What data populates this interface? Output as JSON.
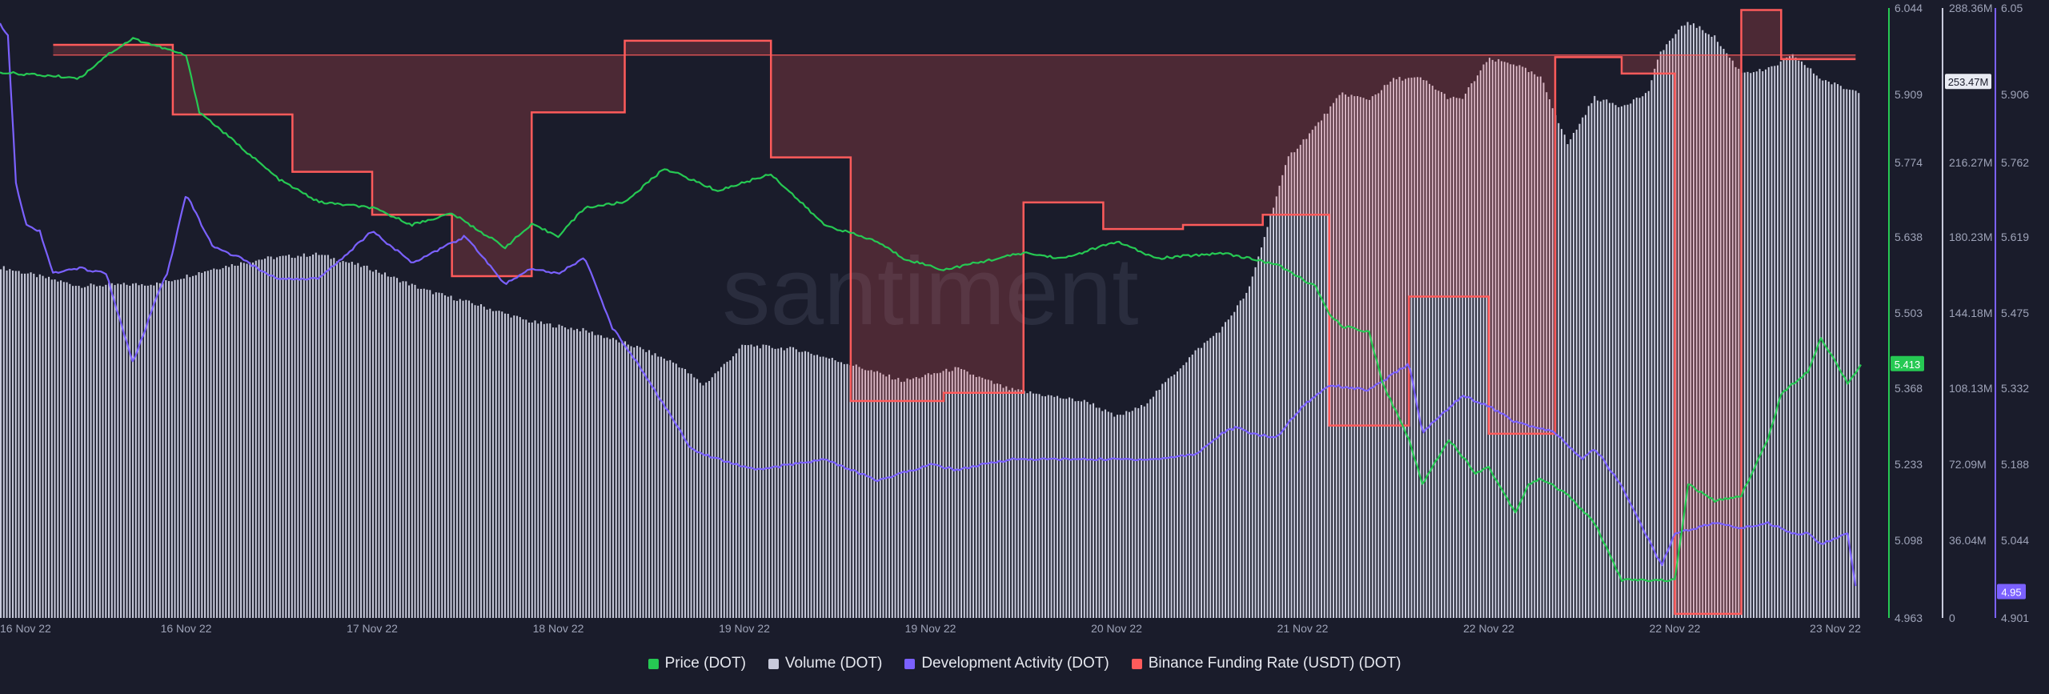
{
  "watermark": "santiment",
  "colors": {
    "background": "#1a1c2b",
    "price": "#26c953",
    "volume": "#c8cadb",
    "dev_activity": "#7b61ff",
    "funding": "#ff5b5b",
    "axis_text": "#9ea3b8"
  },
  "legend": [
    {
      "label": "Price (DOT)",
      "color": "#26c953"
    },
    {
      "label": "Volume (DOT)",
      "color": "#c8cadb"
    },
    {
      "label": "Development Activity (DOT)",
      "color": "#7b61ff"
    },
    {
      "label": "Binance Funding Rate (USDT) (DOT)",
      "color": "#ff5b5b"
    }
  ],
  "chart_data": {
    "type": "line",
    "x_tick_labels": [
      "16 Nov 22",
      "16 Nov 22",
      "17 Nov 22",
      "18 Nov 22",
      "19 Nov 22",
      "19 Nov 22",
      "20 Nov 22",
      "21 Nov 22",
      "22 Nov 22",
      "22 Nov 22",
      "23 Nov 22"
    ],
    "x_range": [
      0,
      7
    ],
    "axes": {
      "price": {
        "ticks": [
          "6.044",
          "5.909",
          "5.774",
          "5.638",
          "5.503",
          "5.368",
          "5.233",
          "5.098",
          "4.963"
        ],
        "range": [
          4.963,
          6.044
        ],
        "current": "5.413"
      },
      "volume": {
        "ticks": [
          "288.36M",
          "216.27M",
          "180.23M",
          "144.18M",
          "108.13M",
          "72.09M",
          "36.04M",
          "0"
        ],
        "range": [
          0,
          288.36
        ],
        "current": "253.47M"
      },
      "dev_activity": {
        "ticks": [
          "6.05",
          "5.906",
          "5.762",
          "5.619",
          "5.475",
          "5.332",
          "5.188",
          "5.044",
          "4.901"
        ],
        "range": [
          4.901,
          6.05
        ],
        "current": "4.95"
      }
    },
    "funding_baseline": 0.002,
    "funding_range": [
      -0.0255,
      0.0043
    ],
    "series": [
      {
        "name": "Price (DOT)",
        "axis": "price",
        "x": [
          0,
          0.3,
          0.4,
          0.5,
          0.7,
          0.75,
          0.9,
          1.05,
          1.2,
          1.4,
          1.55,
          1.7,
          1.9,
          2.0,
          2.1,
          2.2,
          2.35,
          2.5,
          2.7,
          2.9,
          3.1,
          3.3,
          3.4,
          3.55,
          3.65,
          3.85,
          4.0,
          4.2,
          4.35,
          4.6,
          4.8,
          4.95,
          5.0,
          5.05,
          5.15,
          5.2,
          5.3,
          5.35,
          5.45,
          5.55,
          5.6,
          5.7,
          5.75,
          5.8,
          5.9,
          6.0,
          6.1,
          6.3,
          6.35,
          6.45,
          6.55,
          6.6,
          6.65,
          6.7,
          6.8,
          6.85,
          6.95,
          7.0
        ],
        "values": [
          5.93,
          5.92,
          5.96,
          5.99,
          5.96,
          5.86,
          5.8,
          5.74,
          5.7,
          5.69,
          5.66,
          5.68,
          5.62,
          5.66,
          5.64,
          5.69,
          5.7,
          5.76,
          5.72,
          5.75,
          5.66,
          5.63,
          5.6,
          5.58,
          5.59,
          5.61,
          5.6,
          5.63,
          5.6,
          5.61,
          5.59,
          5.55,
          5.5,
          5.48,
          5.47,
          5.38,
          5.28,
          5.2,
          5.28,
          5.22,
          5.23,
          5.15,
          5.2,
          5.21,
          5.18,
          5.13,
          5.03,
          5.03,
          5.2,
          5.17,
          5.18,
          5.23,
          5.28,
          5.36,
          5.4,
          5.46,
          5.38,
          5.41
        ]
      },
      {
        "name": "Volume (DOT)",
        "axis": "volume",
        "x": [
          0,
          0.3,
          0.6,
          0.8,
          1.0,
          1.2,
          1.4,
          1.6,
          1.8,
          2.0,
          2.2,
          2.4,
          2.55,
          2.65,
          2.8,
          3.0,
          3.2,
          3.4,
          3.6,
          3.8,
          4.0,
          4.1,
          4.2,
          4.3,
          4.4,
          4.5,
          4.6,
          4.7,
          4.8,
          4.85,
          4.95,
          5.05,
          5.15,
          5.25,
          5.35,
          5.45,
          5.5,
          5.6,
          5.7,
          5.8,
          5.9,
          6.0,
          6.1,
          6.2,
          6.25,
          6.35,
          6.45,
          6.55,
          6.65,
          6.75,
          6.85,
          6.95,
          7.0
        ],
        "values": [
          166,
          157,
          158,
          165,
          170,
          172,
          165,
          155,
          148,
          140,
          136,
          128,
          120,
          110,
          129,
          127,
          120,
          112,
          118,
          108,
          104,
          102,
          95,
          100,
          113,
          126,
          137,
          155,
          198,
          218,
          232,
          248,
          245,
          255,
          255,
          246,
          245,
          264,
          262,
          255,
          224,
          246,
          242,
          248,
          268,
          282,
          275,
          258,
          259,
          266,
          255,
          250,
          249
        ]
      },
      {
        "name": "Development Activity (DOT)",
        "axis": "dev_activity",
        "x": [
          0,
          0.03,
          0.06,
          0.1,
          0.15,
          0.2,
          0.3,
          0.4,
          0.5,
          0.6,
          0.63,
          0.7,
          0.8,
          0.9,
          1.0,
          1.05,
          1.2,
          1.4,
          1.55,
          1.75,
          1.9,
          2.0,
          2.1,
          2.2,
          2.3,
          2.4,
          2.6,
          2.7,
          2.85,
          3.1,
          3.3,
          3.5,
          3.6,
          3.8,
          4.0,
          4.2,
          4.35,
          4.5,
          4.6,
          4.65,
          4.7,
          4.8,
          4.9,
          5.0,
          5.15,
          5.3,
          5.35,
          5.5,
          5.6,
          5.7,
          5.85,
          5.95,
          6.0,
          6.1,
          6.2,
          6.25,
          6.3,
          6.45,
          6.55,
          6.65,
          6.75,
          6.8,
          6.85,
          6.95,
          6.98
        ],
        "values": [
          6.02,
          6.0,
          5.72,
          5.64,
          5.63,
          5.55,
          5.56,
          5.55,
          5.38,
          5.52,
          5.55,
          5.7,
          5.6,
          5.58,
          5.55,
          5.54,
          5.54,
          5.63,
          5.57,
          5.62,
          5.53,
          5.56,
          5.55,
          5.58,
          5.45,
          5.38,
          5.22,
          5.2,
          5.18,
          5.2,
          5.16,
          5.19,
          5.18,
          5.2,
          5.2,
          5.2,
          5.2,
          5.21,
          5.25,
          5.26,
          5.25,
          5.24,
          5.3,
          5.34,
          5.33,
          5.38,
          5.25,
          5.32,
          5.3,
          5.27,
          5.25,
          5.2,
          5.22,
          5.15,
          5.05,
          5.0,
          5.06,
          5.08,
          5.07,
          5.08,
          5.06,
          5.06,
          5.04,
          5.06,
          4.96
        ]
      },
      {
        "name": "Binance Funding Rate (USDT) (DOT)",
        "axis": "funding",
        "step": true,
        "x": [
          0.2,
          0.5,
          0.65,
          0.85,
          1.1,
          1.4,
          1.7,
          2.0,
          2.35,
          2.65,
          2.9,
          3.2,
          3.55,
          3.85,
          4.15,
          4.45,
          4.75,
          5.0,
          5.3,
          5.6,
          5.85,
          6.1,
          6.3,
          6.55,
          6.7,
          6.98
        ],
        "values": [
          0.0025,
          0.0025,
          -0.0009,
          -0.0009,
          -0.0037,
          -0.0058,
          -0.0088,
          -0.0008,
          0.0027,
          0.0027,
          -0.003,
          -0.0149,
          -0.0145,
          -0.0052,
          -0.0065,
          -0.0063,
          -0.0058,
          -0.0161,
          -0.0098,
          -0.0165,
          0.0019,
          0.0011,
          -0.0253,
          0.0042,
          0.0018,
          0.0018
        ]
      }
    ]
  }
}
